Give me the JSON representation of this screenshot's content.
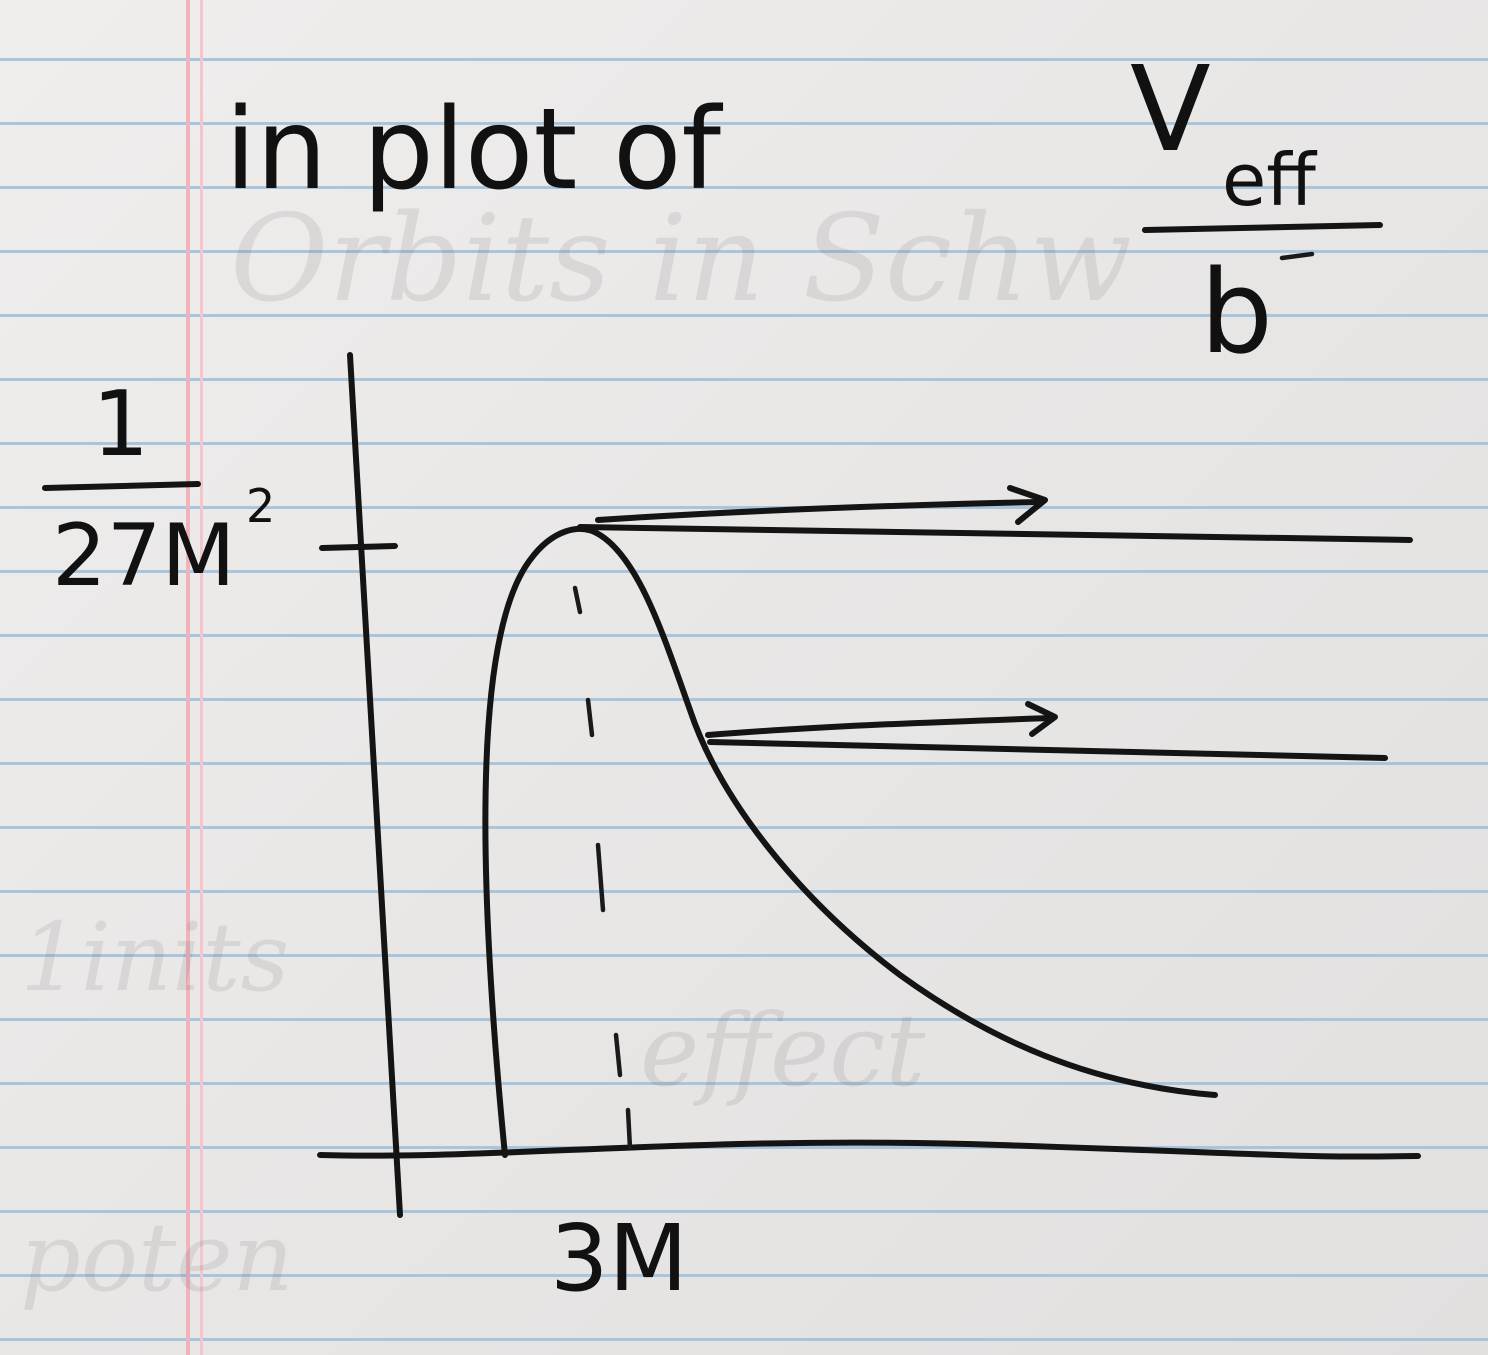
{
  "heading": {
    "prefix": "in plot of",
    "numerator": "V",
    "numerator_sub": "eff",
    "denominator": "b"
  },
  "axes": {
    "y_tick_numerator": "1",
    "y_tick_denominator": "27M",
    "y_tick_exponent": "2",
    "x_tick_label": "3M"
  },
  "bleed_through_text": [
    "Orbits in Schw",
    "1inits",
    "effect",
    "poten"
  ],
  "colors": {
    "ink": "#141414",
    "rule_lines": "#a9c4dd",
    "margin_line": "#efb3bb",
    "paper": "#ece9e8"
  }
}
